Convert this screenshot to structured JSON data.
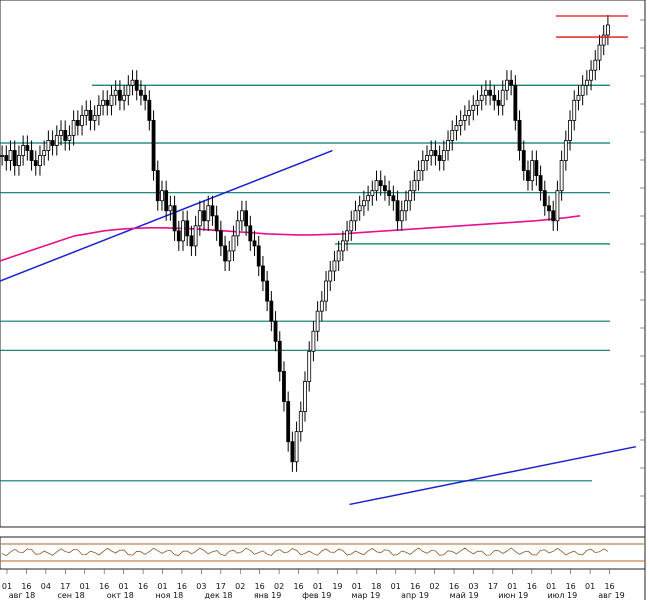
{
  "colors": {
    "candle": "#000000",
    "level": "#007a6e",
    "ma": "#e8108c",
    "trend": "#1a22d0",
    "target": "#e01010",
    "osc": "#8a5a2a",
    "osc_band": "#b06a2a",
    "grid": "#d9d9d9"
  },
  "chart_data": {
    "type": "candlestick",
    "title": "",
    "xlabel": "",
    "ylabel": "",
    "x_days": [
      "01",
      "16",
      "04",
      "17",
      "01",
      "16",
      "01",
      "16",
      "01",
      "16",
      "03",
      "17",
      "02",
      "16",
      "02",
      "16",
      "01",
      "19",
      "01",
      "18",
      "01",
      "16",
      "02",
      "16",
      "03",
      "17",
      "01",
      "16",
      "01",
      "16",
      "01",
      "16"
    ],
    "x_months": [
      "авг 18",
      "сен 18",
      "окт 18",
      "ноя 18",
      "дек 18",
      "янв 19",
      "фев 19",
      "мар 19",
      "апр 19",
      "май 19",
      "июн 19",
      "июл 19",
      "авг 19"
    ],
    "ylim": [
      0,
      100
    ],
    "closes": [
      73,
      72,
      74,
      71,
      73,
      75,
      74,
      72,
      71,
      73,
      74,
      76,
      75,
      77,
      78,
      76,
      77,
      80,
      79,
      81,
      82,
      80,
      81,
      83,
      84,
      83,
      85,
      86,
      84,
      85,
      87,
      88,
      86,
      85,
      84,
      80,
      70,
      64,
      66,
      62,
      63,
      58,
      56,
      60,
      57,
      55,
      59,
      62,
      60,
      63,
      61,
      58,
      55,
      52,
      54,
      57,
      60,
      62,
      59,
      56,
      55,
      51,
      48,
      44,
      40,
      36,
      30,
      24,
      16,
      12,
      18,
      22,
      28,
      34,
      38,
      42,
      44,
      48,
      50,
      52,
      54,
      56,
      58,
      60,
      62,
      63,
      64,
      65,
      66,
      68,
      67,
      66,
      65,
      64,
      60,
      62,
      64,
      66,
      68,
      70,
      72,
      73,
      74,
      73,
      72,
      74,
      76,
      78,
      79,
      80,
      81,
      82,
      83,
      84,
      85,
      86,
      85,
      84,
      83,
      86,
      88,
      87,
      80,
      74,
      70,
      68,
      72,
      69,
      66,
      63,
      62,
      60,
      66,
      72,
      76,
      80,
      84,
      85,
      87,
      88,
      90,
      92,
      95,
      97,
      99
    ],
    "ma200": [
      52,
      53,
      54,
      55,
      56,
      57,
      57.5,
      58,
      58.3,
      58.5,
      58.6,
      58.6,
      58.5,
      58.4,
      58.2,
      58,
      57.8,
      57.6,
      57.4,
      57.3,
      57.2,
      57.2,
      57.3,
      57.4,
      57.6,
      57.8,
      58,
      58.2,
      58.4,
      58.6,
      58.8,
      59,
      59.2,
      59.4,
      59.6,
      59.8,
      60,
      60.3,
      60.6,
      61
    ],
    "horizontal_levels": [
      87,
      75.5,
      65.6,
      55.4,
      40,
      34.2,
      8.2
    ],
    "target_levels": [
      100.8,
      96.6
    ],
    "trendlines": [
      {
        "from": [
          0,
          48
        ],
        "to": [
          0.545,
          74
        ]
      },
      {
        "from": [
          0.573,
          3.5
        ],
        "to": [
          0.985,
          15
        ]
      }
    ],
    "oscillator_levels": [
      1,
      0
    ]
  }
}
